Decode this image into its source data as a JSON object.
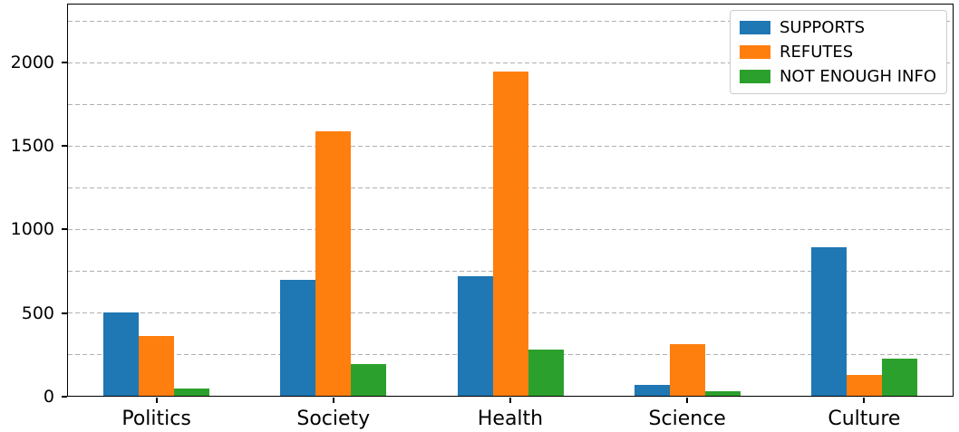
{
  "chart_data": {
    "type": "bar",
    "title": "",
    "xlabel": "",
    "ylabel": "",
    "categories": [
      "Politics",
      "Society",
      "Health",
      "Science",
      "Culture"
    ],
    "series": [
      {
        "name": "SUPPORTS",
        "color": "#1f77b4",
        "values": [
          500,
          695,
          720,
          65,
          890
        ]
      },
      {
        "name": "REFUTES",
        "color": "#ff7f0e",
        "values": [
          360,
          1590,
          1950,
          310,
          125
        ]
      },
      {
        "name": "NOT ENOUGH INFO",
        "color": "#2ca02c",
        "values": [
          45,
          190,
          280,
          30,
          225
        ]
      }
    ],
    "ylim": [
      0,
      2350
    ],
    "yticks": [
      0,
      500,
      1000,
      1500,
      2000
    ],
    "gridline_step": 250,
    "grid": true,
    "grid_style": "dashed",
    "legend_position": "upper right"
  },
  "colors": {
    "supports": "#1f77b4",
    "refutes": "#ff7f0e",
    "not_enough_info": "#2ca02c",
    "gridline": "#b0b0b0",
    "spine": "#000000",
    "background": "#ffffff"
  }
}
